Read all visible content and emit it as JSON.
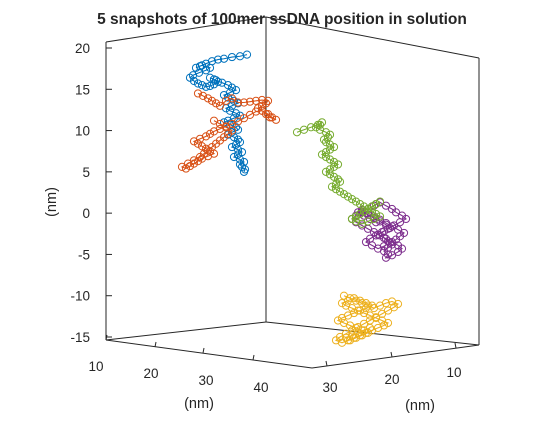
{
  "chart_data": {
    "type": "scatter3d-line",
    "title": "5 snapshots of 100mer ssDNA position in solution",
    "xlabel": "(nm)",
    "ylabel": "(nm)",
    "zlabel": "(nm)",
    "xticks": [
      "10",
      "20",
      "30",
      "40"
    ],
    "yticks": [
      "30",
      "20",
      "10"
    ],
    "zticks": [
      "20",
      "15",
      "10",
      "5",
      "0",
      "-5",
      "-10",
      "-15"
    ],
    "zlim": [
      -15.5,
      20
    ],
    "grid": false,
    "legend": "none",
    "marker": "open-circle",
    "series": [
      {
        "color": "#0072BD",
        "z": [
          19.2,
          19.0,
          18.9,
          18.7,
          18.6,
          18.4,
          18.1,
          17.8,
          17.6,
          17.9,
          17.6,
          17.3,
          17.0,
          16.7,
          16.4,
          16.0,
          15.7,
          15.5,
          15.3,
          15.4,
          15.6,
          15.9,
          16.2,
          16.4,
          16.1,
          15.8,
          15.5,
          15.2,
          14.9,
          14.6,
          14.3,
          14.0,
          13.6,
          13.3,
          13.0,
          12.7,
          12.4,
          12.1,
          11.8,
          11.5,
          11.2,
          11.0,
          10.7,
          10.4,
          10.1,
          9.8,
          9.5,
          9.2,
          8.9,
          8.6,
          8.3,
          8.0,
          7.7,
          7.4,
          7.1,
          6.8,
          6.5,
          6.2,
          5.9,
          5.6,
          5.3,
          5.0
        ]
      },
      {
        "color": "#D95319",
        "z": [
          14.5,
          14.2,
          13.9,
          13.6,
          13.3,
          13.0,
          13.6,
          13.9,
          13.4,
          13.4,
          13.5,
          13.6,
          13.7,
          13.6,
          13.3,
          13.0,
          12.7,
          12.4,
          12.0,
          11.6,
          11.3,
          11.6,
          12.0,
          12.4,
          12.3,
          11.9,
          11.5,
          11.1,
          10.8,
          10.5,
          10.2,
          9.9,
          9.6,
          9.3,
          9.0,
          8.7,
          8.4,
          8.1,
          7.8,
          7.5,
          7.2,
          6.9,
          6.6,
          6.3,
          6.0,
          5.7,
          5.4,
          5.6,
          6.0,
          6.4,
          6.8,
          7.2,
          7.6,
          8.0,
          8.4,
          8.8,
          9.2,
          9.6,
          10.0,
          10.4,
          10.8,
          11.2
        ]
      },
      {
        "color": "#EDB120",
        "z": [
          -10.0,
          -10.3,
          -10.6,
          -10.9,
          -11.2,
          -11.5,
          -11.2,
          -10.9,
          -10.7,
          -11.0,
          -11.4,
          -11.8,
          -12.2,
          -12.6,
          -13.0,
          -13.4,
          -13.8,
          -14.2,
          -14.6,
          -15.0,
          -15.4,
          -15.7,
          -15.4,
          -15.1,
          -14.8,
          -14.5,
          -14.2,
          -13.9,
          -13.6,
          -13.3,
          -13.0,
          -12.7,
          -12.4,
          -12.1,
          -11.8,
          -11.5,
          -11.2,
          -10.9,
          -10.6,
          -10.3,
          -10.6,
          -10.9,
          -11.2,
          -11.5,
          -11.8,
          -12.1,
          -12.4,
          -12.7,
          -13.0,
          -13.3,
          -13.6,
          -13.9,
          -14.2,
          -14.5,
          -14.8,
          -15.1,
          -15.4,
          -15.1,
          -14.8,
          -14.5,
          -14.2,
          -13.9
        ]
      },
      {
        "color": "#7E2F8E",
        "z": [
          0.2,
          -0.2,
          -0.6,
          -1.0,
          -1.4,
          -1.8,
          -2.2,
          -2.6,
          -3.0,
          -3.4,
          -3.8,
          -4.2,
          -4.6,
          -5.0,
          -5.4,
          -5.1,
          -4.7,
          -4.3,
          -3.9,
          -3.5,
          -3.1,
          -2.7,
          -2.3,
          -1.9,
          -1.5,
          -1.1,
          -0.7,
          -0.3,
          0.1,
          0.5,
          0.9,
          1.3,
          0.9,
          0.5,
          0.1,
          -0.3,
          -0.7,
          -1.1,
          -1.5,
          -1.9,
          -2.3,
          -2.7,
          -3.1,
          -3.5,
          -3.9,
          -4.3,
          -4.0,
          -3.6,
          -3.2,
          -2.8,
          -2.4,
          -2.0,
          -1.6,
          -1.2,
          -0.8,
          -0.4,
          0.0,
          0.4,
          0.1,
          -0.3,
          -0.7,
          -1.1
        ]
      },
      {
        "color": "#77AC30",
        "z": [
          9.8,
          10.1,
          10.4,
          10.7,
          11.0,
          10.7,
          10.4,
          10.1,
          9.8,
          9.5,
          9.2,
          8.9,
          8.6,
          8.3,
          8.0,
          7.7,
          7.4,
          7.1,
          6.8,
          6.5,
          6.2,
          5.9,
          5.6,
          5.3,
          5.0,
          4.7,
          4.4,
          4.1,
          3.8,
          3.5,
          3.2,
          2.9,
          2.6,
          2.3,
          2.0,
          1.7,
          1.4,
          1.1,
          0.8,
          0.5,
          0.2,
          -0.1,
          -0.4,
          -0.7,
          -1.0,
          -1.3,
          -1.0,
          -0.7,
          -0.4,
          -0.1,
          0.2,
          0.5,
          0.8,
          1.1,
          1.4,
          1.1,
          0.8,
          0.5,
          0.2,
          -0.1,
          -0.4,
          -0.7
        ]
      }
    ]
  }
}
